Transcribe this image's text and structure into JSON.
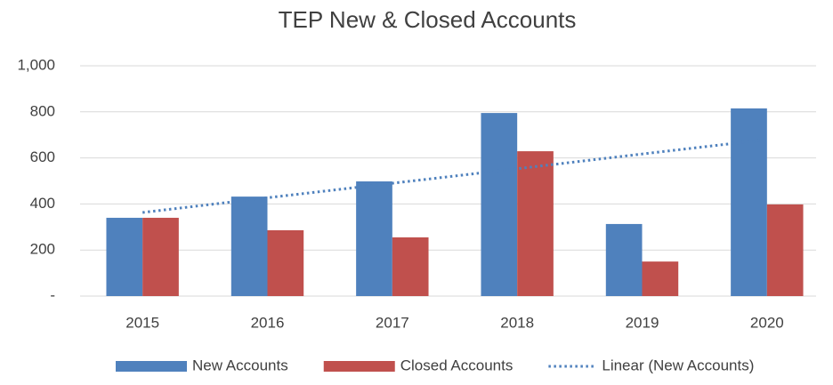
{
  "chart_data": {
    "type": "bar",
    "title": "TEP New & Closed Accounts",
    "categories": [
      "2015",
      "2016",
      "2017",
      "2018",
      "2019",
      "2020"
    ],
    "series": [
      {
        "name": "New Accounts",
        "color": "#4f81bd",
        "values": [
          340,
          432,
          498,
          795,
          313,
          815
        ]
      },
      {
        "name": "Closed Accounts",
        "color": "#c0504d",
        "values": [
          340,
          286,
          255,
          629,
          150,
          398
        ]
      },
      {
        "name": "Linear (New Accounts)",
        "color": "#4f81bd",
        "type": "trendline",
        "values": [
          363,
          427,
          490,
          553,
          617,
          680
        ]
      }
    ],
    "ylim": [
      0,
      1000
    ],
    "yticks": [
      {
        "value": 0,
        "label": "-"
      },
      200,
      400,
      600,
      800,
      {
        "value": 1000,
        "label": "1,000"
      }
    ],
    "grid": true,
    "legend": "bottom"
  }
}
